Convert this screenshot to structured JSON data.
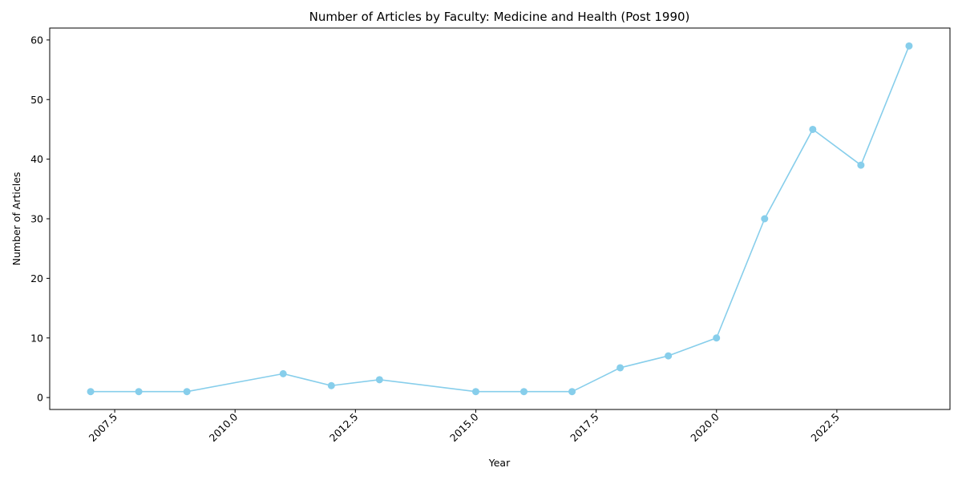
{
  "chart_data": {
    "type": "line",
    "title": "Number of Articles by Faculty: Medicine and Health (Post 1990)",
    "xlabel": "Year",
    "ylabel": "Number of Articles",
    "x": [
      2007,
      2008,
      2009,
      2011,
      2012,
      2013,
      2015,
      2016,
      2017,
      2018,
      2019,
      2020,
      2021,
      2022,
      2023,
      2024
    ],
    "series": [
      {
        "values": [
          1,
          1,
          1,
          4,
          2,
          3,
          1,
          1,
          1,
          5,
          7,
          10,
          30,
          45,
          39,
          59
        ],
        "color": "#87ceeb",
        "marker": "circle"
      }
    ],
    "xlim": [
      2006.15,
      2024.85
    ],
    "ylim": [
      -2,
      62
    ],
    "xticks": [
      "2007.5",
      "2010.0",
      "2012.5",
      "2015.0",
      "2017.5",
      "2020.0",
      "2022.5"
    ],
    "xtick_values": [
      2007.5,
      2010.0,
      2012.5,
      2015.0,
      2017.5,
      2020.0,
      2022.5
    ],
    "yticks": [
      "0",
      "10",
      "20",
      "30",
      "40",
      "50",
      "60"
    ],
    "ytick_values": [
      0,
      10,
      20,
      30,
      40,
      50,
      60
    ],
    "x_tick_rotation_deg": 45,
    "grid": false,
    "legend": "none"
  }
}
